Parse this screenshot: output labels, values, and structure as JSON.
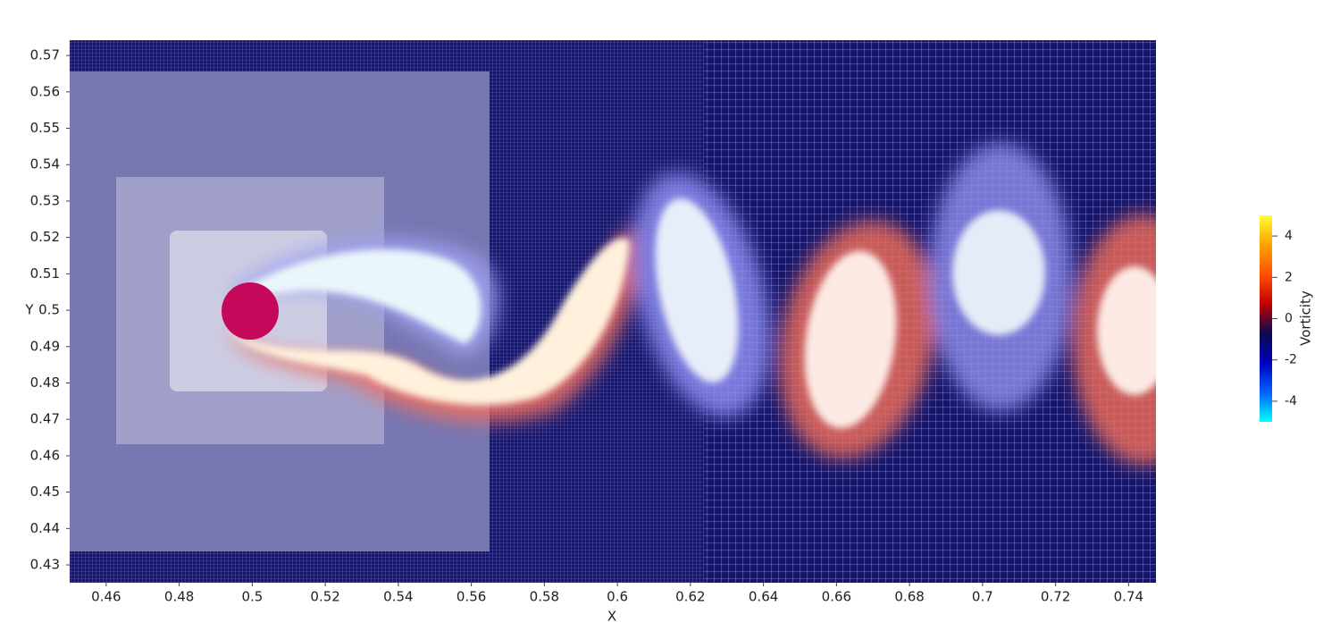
{
  "chart_data": {
    "type": "field",
    "x_label": "X",
    "y_label": "Y",
    "xlim": [
      0.45,
      0.7475
    ],
    "ylim": [
      0.4251,
      0.5742
    ],
    "xticks": [
      0.46,
      0.48,
      0.5,
      0.52,
      0.54,
      0.56,
      0.58,
      0.6,
      0.62,
      0.64,
      0.66,
      0.68,
      0.7,
      0.72,
      0.74
    ],
    "yticks": [
      0.43,
      0.44,
      0.45,
      0.46,
      0.47,
      0.48,
      0.49,
      0.5,
      0.51,
      0.52,
      0.53,
      0.54,
      0.55,
      0.56,
      0.57
    ],
    "colorbar": {
      "label": "Vorticity",
      "clim": [
        -5,
        5
      ],
      "ticks": [
        4,
        2,
        0,
        -2,
        -4
      ],
      "colors": [
        "#00ffff",
        "#0060ff",
        "#0000c0",
        "#0a0a50",
        "#c00000",
        "#ff5000",
        "#ffa000",
        "#ffff30"
      ]
    }
  }
}
